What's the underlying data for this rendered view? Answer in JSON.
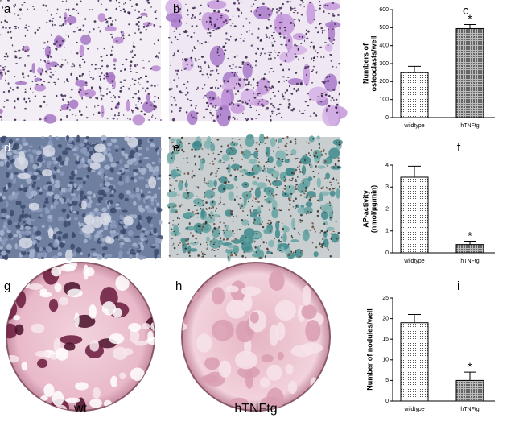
{
  "panels": [
    "a",
    "b",
    "d",
    "e",
    "g",
    "h"
  ],
  "plate_labels": [
    "wt",
    "hTNFtg"
  ],
  "chart_data": [
    {
      "type": "bar",
      "panel_label": "c",
      "ylabel": [
        "Numbers of",
        "osteoclasts/well"
      ],
      "categories": [
        "wildtype",
        "hTNFtg"
      ],
      "values": [
        250,
        495
      ],
      "errors": [
        35,
        22
      ],
      "ylim": [
        0,
        600
      ],
      "yticks": [
        0,
        100,
        200,
        300,
        400,
        500,
        600
      ],
      "significance": "*"
    },
    {
      "type": "bar",
      "panel_label": "f",
      "ylabel": [
        "AP-activity",
        "(nmol/µg/min)"
      ],
      "categories": [
        "wildtype",
        "hTNFtg"
      ],
      "values": [
        3.45,
        0.38
      ],
      "errors": [
        0.5,
        0.15
      ],
      "ylim": [
        0,
        4
      ],
      "yticks": [
        0,
        1,
        2,
        3,
        4
      ],
      "significance": "*"
    },
    {
      "type": "bar",
      "panel_label": "i",
      "ylabel": [
        "Number of nodules/well"
      ],
      "categories": [
        "wildtype",
        "hTNFtg"
      ],
      "values": [
        19,
        5
      ],
      "errors": [
        2,
        2
      ],
      "ylim": [
        0,
        25
      ],
      "yticks": [
        0,
        5,
        10,
        15,
        20,
        25
      ],
      "significance": "*"
    }
  ]
}
